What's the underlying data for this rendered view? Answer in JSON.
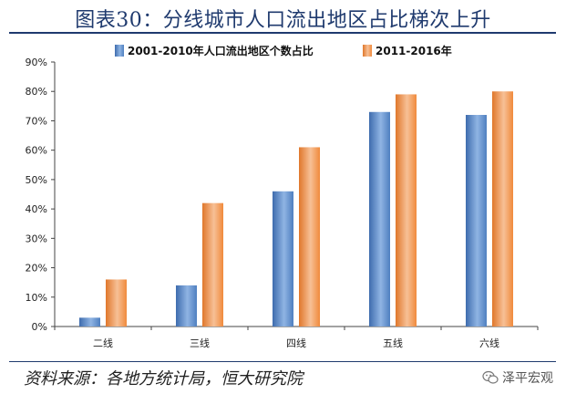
{
  "title": "图表30：分线城市人口流出地区占比梯次上升",
  "source": "资料来源：各地方统计局，恒大研究院",
  "watermark": "泽平宏观",
  "colors": {
    "series1": "#4f7fc0",
    "series1_light": "#8fb4e3",
    "series2": "#f08a3c",
    "series2_light": "#f7c096",
    "title": "#1f3a6e"
  },
  "chart_data": {
    "type": "bar",
    "categories": [
      "二线",
      "三线",
      "四线",
      "五线",
      "六线"
    ],
    "series": [
      {
        "name": "2001-2010年人口流出地区个数占比",
        "values": [
          3,
          14,
          46,
          73,
          72
        ]
      },
      {
        "name": "2011-2016年",
        "values": [
          16,
          42,
          61,
          79,
          80
        ]
      }
    ],
    "ylim": [
      0,
      90
    ],
    "yticks": [
      0,
      10,
      20,
      30,
      40,
      50,
      60,
      70,
      80,
      90
    ],
    "ytick_labels": [
      "0%",
      "10%",
      "20%",
      "30%",
      "40%",
      "50%",
      "60%",
      "70%",
      "80%",
      "90%"
    ],
    "legend_position": "top-center",
    "grid": false,
    "xlabel": "",
    "ylabel": ""
  }
}
